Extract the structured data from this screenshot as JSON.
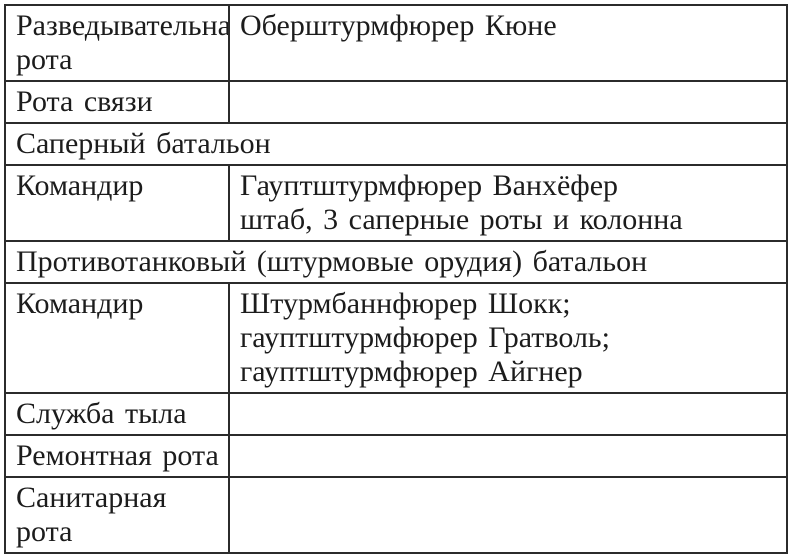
{
  "page": {
    "background_color": "#ffffff",
    "text_color": "#1c1c1c",
    "border_color": "#2b2b2b"
  },
  "table": {
    "rows": [
      {
        "kind": "pair",
        "label": "Разведывательная рота",
        "value_lines": [
          "Оберштурмфюрер Кюне"
        ]
      },
      {
        "kind": "pair",
        "label": "Рота связи",
        "value_lines": []
      },
      {
        "kind": "section",
        "label": "Саперный батальон"
      },
      {
        "kind": "pair",
        "label": "Командир",
        "value_lines": [
          "Гауптштурмфюрер Ванхёфер",
          "штаб, 3 саперные роты и колонна"
        ]
      },
      {
        "kind": "section",
        "label": "Противотанковый (штурмовые орудия) батальон"
      },
      {
        "kind": "pair",
        "label": "Командир",
        "value_lines": [
          "Штурмбаннфюрер Шокк;",
          "гауптштурмфюрер Гратволь;",
          "гауптштурмфюрер Айгнер"
        ]
      },
      {
        "kind": "pair",
        "label": "Служба тыла",
        "value_lines": []
      },
      {
        "kind": "pair",
        "label": "Ремонтная рота",
        "value_lines": []
      },
      {
        "kind": "pair",
        "label": "Санитарная рота",
        "value_lines": []
      }
    ]
  }
}
